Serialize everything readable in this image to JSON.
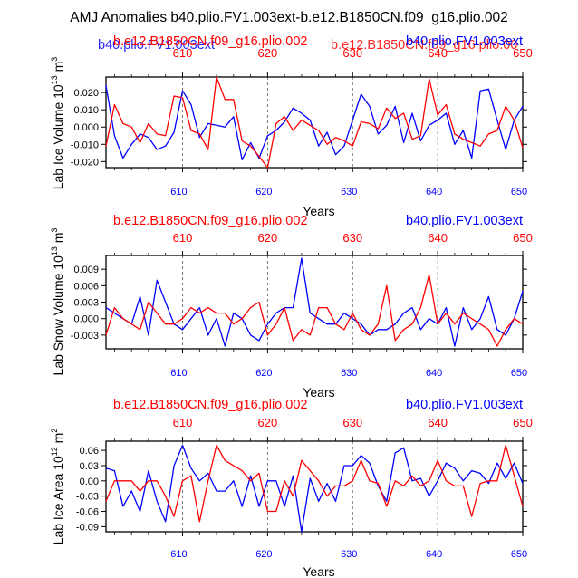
{
  "page": {
    "title": "AMJ Anomalies b40.plio.FV1.003ext-b.e12.B1850CN.f09_g16.plio.002"
  },
  "colors": {
    "red": "#ff0000",
    "blue": "#0000ff",
    "black": "#000000",
    "grid": "#555555"
  },
  "overlaps": {
    "top_left": "b40.plio.FV1.003ext",
    "top_right": "b.e12.B1850CN.f09_g16.plio.00"
  },
  "chart_data": [
    {
      "type": "line",
      "id": "ice-volume",
      "title_left": "b.e12.B1850CN.f09_g16.plio.002",
      "title_right": "b40.plio.FV1.003ext",
      "xlabel": "Years",
      "ylabel": "Lab Ice Volume 10",
      "ylabel_exp": "13",
      "ylabel_unit": " m",
      "ylabel_unit_exp": "3",
      "xlim": [
        601,
        650
      ],
      "ylim": [
        -0.0235,
        0.029
      ],
      "yticks": [
        0.02,
        0.01,
        0.0,
        -0.01,
        -0.02
      ],
      "ytick_labels": [
        "0.020",
        "0.010",
        "0.000",
        "-0.010",
        "-0.020"
      ],
      "xticks": [
        610,
        620,
        630,
        640,
        650
      ],
      "xtick_labels": [
        "610",
        "620",
        "630",
        "640",
        "650"
      ],
      "x": [
        601,
        602,
        603,
        604,
        605,
        606,
        607,
        608,
        609,
        610,
        611,
        612,
        613,
        614,
        615,
        616,
        617,
        618,
        619,
        620,
        621,
        622,
        623,
        624,
        625,
        626,
        627,
        628,
        629,
        630,
        631,
        632,
        633,
        634,
        635,
        636,
        637,
        638,
        639,
        640,
        641,
        642,
        643,
        644,
        645,
        646,
        647,
        648,
        649,
        650
      ],
      "series": [
        {
          "name": "b40.plio.FV1.003ext",
          "color": "blue",
          "values": [
            0.024,
            -0.005,
            -0.018,
            -0.01,
            -0.004,
            -0.006,
            -0.013,
            -0.011,
            -0.003,
            0.021,
            0.013,
            -0.006,
            0.002,
            0.001,
            0.0,
            0.006,
            -0.019,
            -0.009,
            -0.018,
            -0.005,
            -0.002,
            0.003,
            0.011,
            0.008,
            0.004,
            -0.011,
            -0.003,
            -0.016,
            -0.011,
            0.004,
            0.019,
            0.012,
            -0.004,
            0.001,
            0.012,
            -0.009,
            0.008,
            -0.008,
            0.001,
            0.004,
            0.008,
            -0.01,
            -0.002,
            -0.018,
            0.021,
            0.022,
            0.004,
            -0.013,
            0.004,
            0.012
          ]
        },
        {
          "name": "b.e12.B1850CN.f09_g16.plio.002",
          "color": "red",
          "values": [
            -0.011,
            0.013,
            0.002,
            0.0,
            -0.009,
            0.002,
            -0.004,
            -0.005,
            0.018,
            0.017,
            -0.002,
            -0.004,
            -0.013,
            0.029,
            0.016,
            0.016,
            -0.008,
            -0.011,
            -0.017,
            -0.025,
            0.002,
            0.006,
            -0.002,
            0.004,
            0.001,
            -0.002,
            -0.01,
            -0.006,
            -0.008,
            -0.011,
            0.003,
            0.002,
            -0.001,
            0.011,
            0.005,
            0.008,
            -0.007,
            -0.005,
            0.028,
            0.007,
            0.013,
            -0.004,
            -0.007,
            -0.009,
            -0.011,
            -0.004,
            -0.002,
            0.012,
            0.004,
            -0.012
          ]
        }
      ]
    },
    {
      "type": "line",
      "id": "snow-volume",
      "title_left": "b.e12.B1850CN.f09_g16.plio.002",
      "title_right": "b40.plio.FV1.003ext",
      "xlabel": "Years",
      "ylabel": "Lab Snow Volume 10",
      "ylabel_exp": "13",
      "ylabel_unit": " m",
      "ylabel_unit_exp": "3",
      "xlim": [
        601,
        650
      ],
      "ylim": [
        -0.0055,
        0.0115
      ],
      "yticks": [
        0.009,
        0.006,
        0.003,
        0.0,
        -0.003
      ],
      "ytick_labels": [
        "0.009",
        "0.006",
        "0.003",
        "0.000",
        "-0.003"
      ],
      "xticks": [
        610,
        620,
        630,
        640,
        650
      ],
      "xtick_labels": [
        "610",
        "620",
        "630",
        "640",
        "650"
      ],
      "x": [
        601,
        602,
        603,
        604,
        605,
        606,
        607,
        608,
        609,
        610,
        611,
        612,
        613,
        614,
        615,
        616,
        617,
        618,
        619,
        620,
        621,
        622,
        623,
        624,
        625,
        626,
        627,
        628,
        629,
        630,
        631,
        632,
        633,
        634,
        635,
        636,
        637,
        638,
        639,
        640,
        641,
        642,
        643,
        644,
        645,
        646,
        647,
        648,
        649,
        650
      ],
      "series": [
        {
          "name": "b40.plio.FV1.003ext",
          "color": "blue",
          "values": [
            0.002,
            0.001,
            0.0,
            -0.001,
            0.004,
            -0.003,
            0.007,
            0.003,
            -0.001,
            -0.002,
            0.0,
            0.002,
            -0.003,
            0.0,
            -0.005,
            0.001,
            0.0,
            -0.003,
            -0.004,
            -0.001,
            0.001,
            0.002,
            0.002,
            0.011,
            0.001,
            0.0,
            -0.001,
            -0.001,
            0.001,
            0.0,
            -0.001,
            -0.003,
            -0.002,
            -0.002,
            -0.001,
            0.001,
            0.002,
            -0.002,
            0.0,
            -0.001,
            0.002,
            -0.005,
            0.002,
            -0.002,
            0.0,
            0.004,
            -0.002,
            -0.003,
            0.0,
            0.005
          ]
        },
        {
          "name": "b.e12.B1850CN.f09_g16.plio.002",
          "color": "red",
          "values": [
            -0.003,
            0.002,
            0.0,
            -0.001,
            -0.002,
            0.003,
            0.001,
            -0.001,
            -0.001,
            0.0,
            0.002,
            0.001,
            0.002,
            0.001,
            0.001,
            -0.001,
            0.0,
            0.002,
            0.003,
            -0.003,
            -0.001,
            0.002,
            -0.004,
            -0.002,
            -0.003,
            0.002,
            0.002,
            -0.001,
            -0.002,
            0.001,
            -0.002,
            -0.003,
            -0.001,
            0.006,
            -0.004,
            -0.002,
            -0.001,
            0.002,
            0.008,
            -0.001,
            0.001,
            -0.001,
            0.001,
            0.0,
            -0.001,
            -0.002,
            -0.005,
            -0.002,
            0.0,
            -0.001
          ]
        }
      ]
    },
    {
      "type": "line",
      "id": "ice-area",
      "title_left": "b.e12.B1850CN.f09_g16.plio.002",
      "title_right": "b40.plio.FV1.003ext",
      "xlabel": "Years",
      "ylabel": "Lab Ice Area 10",
      "ylabel_exp": "12",
      "ylabel_unit": " m",
      "ylabel_unit_exp": "2",
      "xlim": [
        601,
        650
      ],
      "ylim": [
        -0.1,
        0.078
      ],
      "yticks": [
        0.06,
        0.03,
        0.0,
        -0.03,
        -0.06,
        -0.09
      ],
      "ytick_labels": [
        "0.06",
        "0.03",
        "0.00",
        "-0.03",
        "-0.06",
        "-0.09"
      ],
      "xticks": [
        610,
        620,
        630,
        640,
        650
      ],
      "xtick_labels": [
        "610",
        "620",
        "630",
        "640",
        "650"
      ],
      "x": [
        601,
        602,
        603,
        604,
        605,
        606,
        607,
        608,
        609,
        610,
        611,
        612,
        613,
        614,
        615,
        616,
        617,
        618,
        619,
        620,
        621,
        622,
        623,
        624,
        625,
        626,
        627,
        628,
        629,
        630,
        631,
        632,
        633,
        634,
        635,
        636,
        637,
        638,
        639,
        640,
        641,
        642,
        643,
        644,
        645,
        646,
        647,
        648,
        649,
        650
      ],
      "series": [
        {
          "name": "b40.plio.FV1.003ext",
          "color": "blue",
          "values": [
            0.025,
            0.02,
            -0.05,
            -0.02,
            -0.06,
            0.02,
            -0.04,
            -0.08,
            0.03,
            0.07,
            0.025,
            0.0,
            0.015,
            -0.02,
            -0.02,
            0.0,
            -0.05,
            0.01,
            -0.05,
            0.0,
            0.0,
            -0.05,
            0.01,
            -0.1,
            0.005,
            -0.04,
            -0.005,
            -0.04,
            0.03,
            0.03,
            0.05,
            0.035,
            -0.01,
            -0.04,
            0.055,
            0.065,
            0.0,
            0.005,
            -0.03,
            0.0,
            0.035,
            0.025,
            0.0,
            0.02,
            0.015,
            -0.005,
            0.035,
            0.005,
            0.035,
            -0.005
          ]
        },
        {
          "name": "b.e12.B1850CN.f09_g16.plio.002",
          "color": "red",
          "values": [
            -0.04,
            0.0,
            0.0,
            0.0,
            -0.02,
            0.0,
            0.0,
            -0.03,
            -0.07,
            0.0,
            0.01,
            -0.08,
            0.0,
            0.07,
            0.04,
            0.03,
            0.02,
            0.0,
            0.015,
            -0.06,
            -0.06,
            0.0,
            -0.03,
            0.04,
            0.02,
            0.0,
            -0.03,
            -0.01,
            -0.01,
            0.0,
            0.04,
            0.0,
            -0.005,
            -0.05,
            0.0,
            -0.01,
            0.01,
            -0.01,
            0.0,
            0.04,
            0.0,
            -0.01,
            -0.01,
            -0.07,
            -0.005,
            0.0,
            0.0,
            0.07,
            0.01,
            -0.05
          ]
        }
      ]
    }
  ]
}
